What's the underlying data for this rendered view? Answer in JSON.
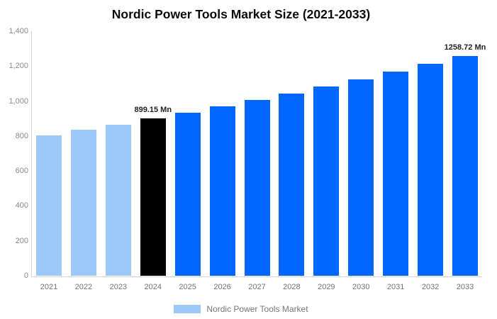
{
  "title": "Nordic Power Tools Market Size (2021-2033)",
  "legend": {
    "label": "Nordic Power Tools Market",
    "swatch_color": "#9CC9F7"
  },
  "colors": {
    "historical_bar": "#9CC9F7",
    "base_year_bar": "#000000",
    "forecast_bar": "#0166FC",
    "axis_line": "#D4D4D4",
    "tick_text": "#8A8A8A",
    "annotation_text": "#222222"
  },
  "chart_data": {
    "type": "bar",
    "title": "Nordic Power Tools Market Size (2021-2033)",
    "categories": [
      "2021",
      "2022",
      "2023",
      "2024",
      "2025",
      "2026",
      "2027",
      "2028",
      "2029",
      "2030",
      "2031",
      "2032",
      "2033"
    ],
    "values": [
      803.74,
      834.36,
      866.15,
      899.15,
      933.41,
      968.98,
      1005.9,
      1044.23,
      1084.02,
      1125.33,
      1168.21,
      1212.73,
      1258.72
    ],
    "unit": "Mn",
    "bar_roles": [
      "historical",
      "historical",
      "historical",
      "base_year",
      "forecast",
      "forecast",
      "forecast",
      "forecast",
      "forecast",
      "forecast",
      "forecast",
      "forecast",
      "forecast"
    ],
    "role_colors": {
      "historical": "#9CC9F7",
      "base_year": "#000000",
      "forecast": "#0166FC"
    },
    "annotations": [
      {
        "category": "2024",
        "text": "899.15 Mn"
      },
      {
        "category": "2033",
        "text": "1258.72 Mn"
      }
    ],
    "y_axis": {
      "tick_labels": [
        "0",
        "200",
        "400",
        "600",
        "800",
        "1,000",
        "1,200",
        "1,400"
      ],
      "min": 0,
      "max": 1400
    },
    "xlabel": "",
    "ylabel": "",
    "grid": false,
    "legend_position": "bottom"
  }
}
